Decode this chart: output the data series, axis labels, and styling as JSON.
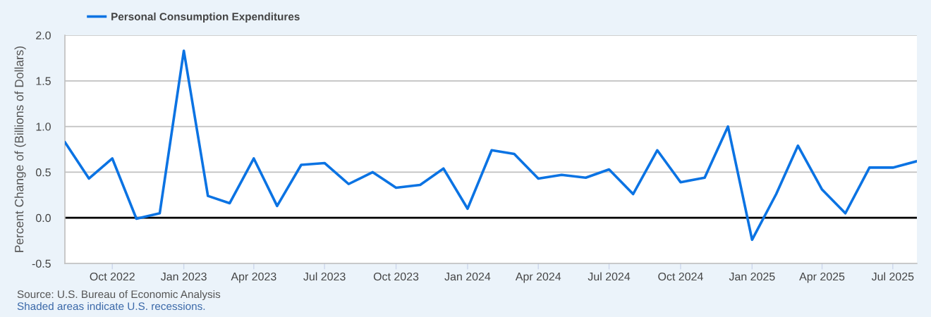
{
  "chart_data": {
    "type": "line",
    "ylabel": "Percent Change of (Billions of Dollars)",
    "x": [
      "2022-08",
      "2022-09",
      "2022-10",
      "2022-11",
      "2022-12",
      "2023-01",
      "2023-02",
      "2023-03",
      "2023-04",
      "2023-05",
      "2023-06",
      "2023-07",
      "2023-08",
      "2023-09",
      "2023-10",
      "2023-11",
      "2023-12",
      "2024-01",
      "2024-02",
      "2024-03",
      "2024-04",
      "2024-05",
      "2024-06",
      "2024-07",
      "2024-08",
      "2024-09",
      "2024-10",
      "2024-11",
      "2024-12",
      "2025-01",
      "2025-02",
      "2025-03",
      "2025-04",
      "2025-05",
      "2025-06",
      "2025-07",
      "2025-08"
    ],
    "series": [
      {
        "name": "Personal Consumption Expenditures",
        "color": "#0b73e3",
        "values": [
          0.83,
          0.43,
          0.65,
          -0.01,
          0.05,
          1.83,
          0.24,
          0.16,
          0.65,
          0.13,
          0.58,
          0.6,
          0.37,
          0.5,
          0.33,
          0.36,
          0.54,
          0.1,
          0.74,
          0.7,
          0.43,
          0.47,
          0.44,
          0.53,
          0.26,
          0.74,
          0.39,
          0.44,
          1.0,
          -0.24,
          0.26,
          0.79,
          0.31,
          0.05,
          0.55,
          0.55,
          0.62
        ]
      }
    ],
    "xlim": [
      "2022-08",
      "2025-08"
    ],
    "xticks": [
      {
        "value": "2022-10",
        "label": "Oct 2022"
      },
      {
        "value": "2023-01",
        "label": "Jan 2023"
      },
      {
        "value": "2023-04",
        "label": "Apr 2023"
      },
      {
        "value": "2023-07",
        "label": "Jul 2023"
      },
      {
        "value": "2023-10",
        "label": "Oct 2023"
      },
      {
        "value": "2024-01",
        "label": "Jan 2024"
      },
      {
        "value": "2024-04",
        "label": "Apr 2024"
      },
      {
        "value": "2024-07",
        "label": "Jul 2024"
      },
      {
        "value": "2024-10",
        "label": "Oct 2024"
      },
      {
        "value": "2025-01",
        "label": "Jan 2025"
      },
      {
        "value": "2025-04",
        "label": "Apr 2025"
      },
      {
        "value": "2025-07",
        "label": "Jul 2025"
      }
    ],
    "ylim": [
      -0.5,
      2.0
    ],
    "yticks": [
      -0.5,
      {
        "value": 0,
        "label": "0.0"
      },
      0.5,
      {
        "value": 1,
        "label": "1.0"
      },
      1.5,
      {
        "value": 2,
        "label": "2.0"
      }
    ],
    "ref_lines": [
      {
        "axis": "y",
        "value": 0,
        "color": "#000000"
      }
    ],
    "grid": "y",
    "legend": "top left",
    "line_style": "solid",
    "annotations": [
      "Source: U.S. Bureau of Economic Analysis",
      "Shaded areas indicate U.S. recessions."
    ]
  }
}
